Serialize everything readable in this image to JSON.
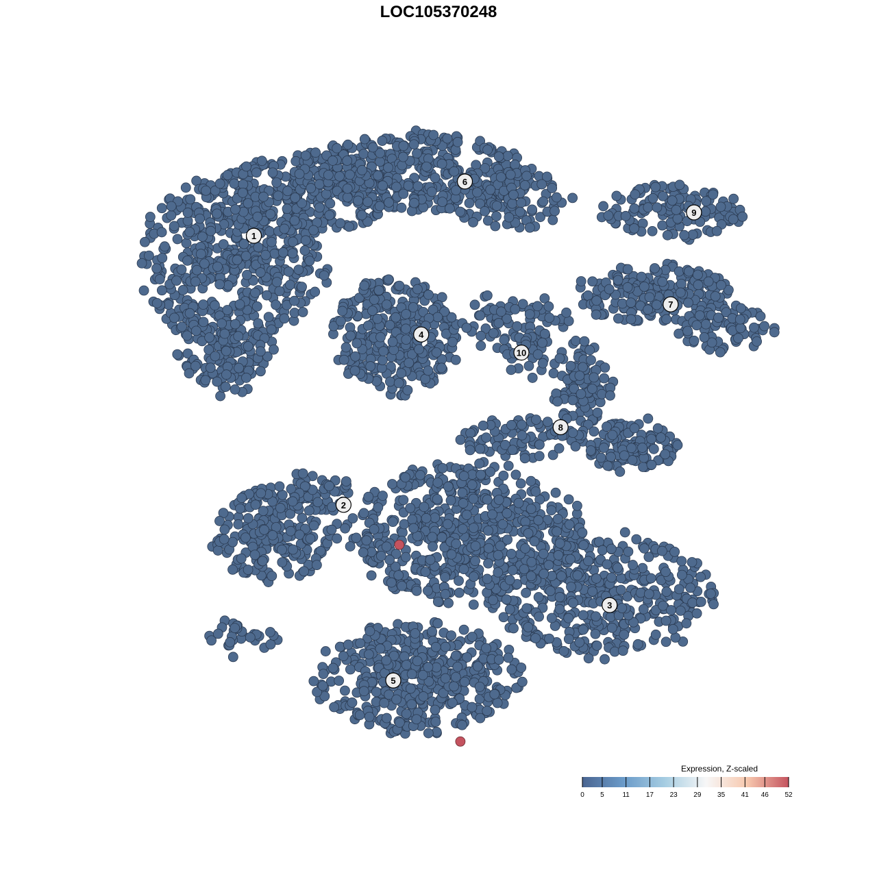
{
  "chart_data": {
    "type": "scatter",
    "title": "LOC105370248",
    "xlabel": "",
    "ylabel": "",
    "xlim": [
      -58.18,
      58.18
    ],
    "ylim": [
      -58.18,
      58.18
    ],
    "grid": false,
    "point_color": "#4e6a8e",
    "point_stroke": "#2b3b52",
    "clusters": [
      {
        "label": "1",
        "label_pos": [
          -24.5,
          26.9
        ],
        "blobs": [
          {
            "center": [
              -27.3,
              23.6
            ],
            "spread": [
              10.9,
              10.0
            ],
            "n": 500
          },
          {
            "center": [
              -28.2,
              10.9
            ],
            "spread": [
              5.5,
              4.5
            ],
            "n": 120
          },
          {
            "center": [
              -17.3,
              32.7
            ],
            "spread": [
              10.9,
              4.5
            ],
            "n": 250
          }
        ]
      },
      {
        "label": "2",
        "label_pos": [
          -12.6,
          -8.8
        ],
        "blobs": [
          {
            "center": [
              -21.8,
              -12.7
            ],
            "spread": [
              7.3,
              5.5
            ],
            "n": 220
          },
          {
            "center": [
              -17.3,
              -7.3
            ],
            "spread": [
              5.5,
              2.3
            ],
            "n": 60
          },
          {
            "center": [
              -26.4,
              -26.4
            ],
            "spread": [
              4.5,
              2.3
            ],
            "n": 30
          }
        ]
      },
      {
        "label": "3",
        "label_pos": [
          22.7,
          -22.1
        ],
        "blobs": [
          {
            "center": [
              21.8,
              -20.9
            ],
            "spread": [
              12.7,
              7.3
            ],
            "n": 400
          },
          {
            "center": [
              3.6,
              -12.7
            ],
            "spread": [
              13.6,
              8.2
            ],
            "n": 600
          }
        ]
      },
      {
        "label": "4",
        "label_pos": [
          -2.3,
          13.8
        ],
        "blobs": [
          {
            "center": [
              -5.5,
              13.6
            ],
            "spread": [
              7.3,
              6.8
            ],
            "n": 350
          }
        ]
      },
      {
        "label": "5",
        "label_pos": [
          -6.0,
          -32.1
        ],
        "blobs": [
          {
            "center": [
              -2.7,
              -31.8
            ],
            "spread": [
              11.8,
              6.4
            ],
            "n": 450
          }
        ]
      },
      {
        "label": "6",
        "label_pos": [
          3.5,
          34.1
        ],
        "blobs": [
          {
            "center": [
              -3.6,
              35.5
            ],
            "spread": [
              13.6,
              4.5
            ],
            "n": 400
          },
          {
            "center": [
              9.1,
              31.8
            ],
            "spread": [
              7.3,
              3.6
            ],
            "n": 120
          }
        ]
      },
      {
        "label": "7",
        "label_pos": [
          30.8,
          17.8
        ],
        "blobs": [
          {
            "center": [
              28.2,
              19.1
            ],
            "spread": [
              9.1,
              3.6
            ],
            "n": 200
          },
          {
            "center": [
              38.2,
              14.5
            ],
            "spread": [
              5.5,
              2.7
            ],
            "n": 80
          }
        ]
      },
      {
        "label": "8",
        "label_pos": [
          16.2,
          1.5
        ],
        "blobs": [
          {
            "center": [
              19.1,
              7.3
            ],
            "spread": [
              3.6,
              5.5
            ],
            "n": 100
          },
          {
            "center": [
              25.5,
              -0.9
            ],
            "spread": [
              5.5,
              3.2
            ],
            "n": 120
          },
          {
            "center": [
              10.9,
              0.0
            ],
            "spread": [
              7.3,
              2.3
            ],
            "n": 80
          }
        ]
      },
      {
        "label": "9",
        "label_pos": [
          33.9,
          30.0
        ],
        "blobs": [
          {
            "center": [
              30.9,
              30.0
            ],
            "spread": [
              8.2,
              3.2
            ],
            "n": 130
          }
        ]
      },
      {
        "label": "10",
        "label_pos": [
          11.0,
          11.4
        ],
        "blobs": [
          {
            "center": [
              10.0,
              15.5
            ],
            "spread": [
              6.4,
              3.6
            ],
            "n": 80
          },
          {
            "center": [
              11.4,
              10.9
            ],
            "spread": [
              2.7,
              2.7
            ],
            "n": 30
          }
        ]
      }
    ],
    "highlighted_points": [
      {
        "x": -5.2,
        "y": -14.1,
        "value": 52
      },
      {
        "x": 2.9,
        "y": -40.2,
        "value": 52
      }
    ],
    "legend": {
      "title": "Expression, Z-scaled",
      "placement": "bottom-right",
      "ticks": [
        "0",
        "5",
        "11",
        "17",
        "23",
        "29",
        "35",
        "41",
        "46",
        "52"
      ],
      "range": [
        0,
        52
      ],
      "colors": [
        "#4a6591",
        "#6b9bc9",
        "#a6cde2",
        "#f7f7f7",
        "#f7c8ae",
        "#c4535f"
      ]
    }
  }
}
